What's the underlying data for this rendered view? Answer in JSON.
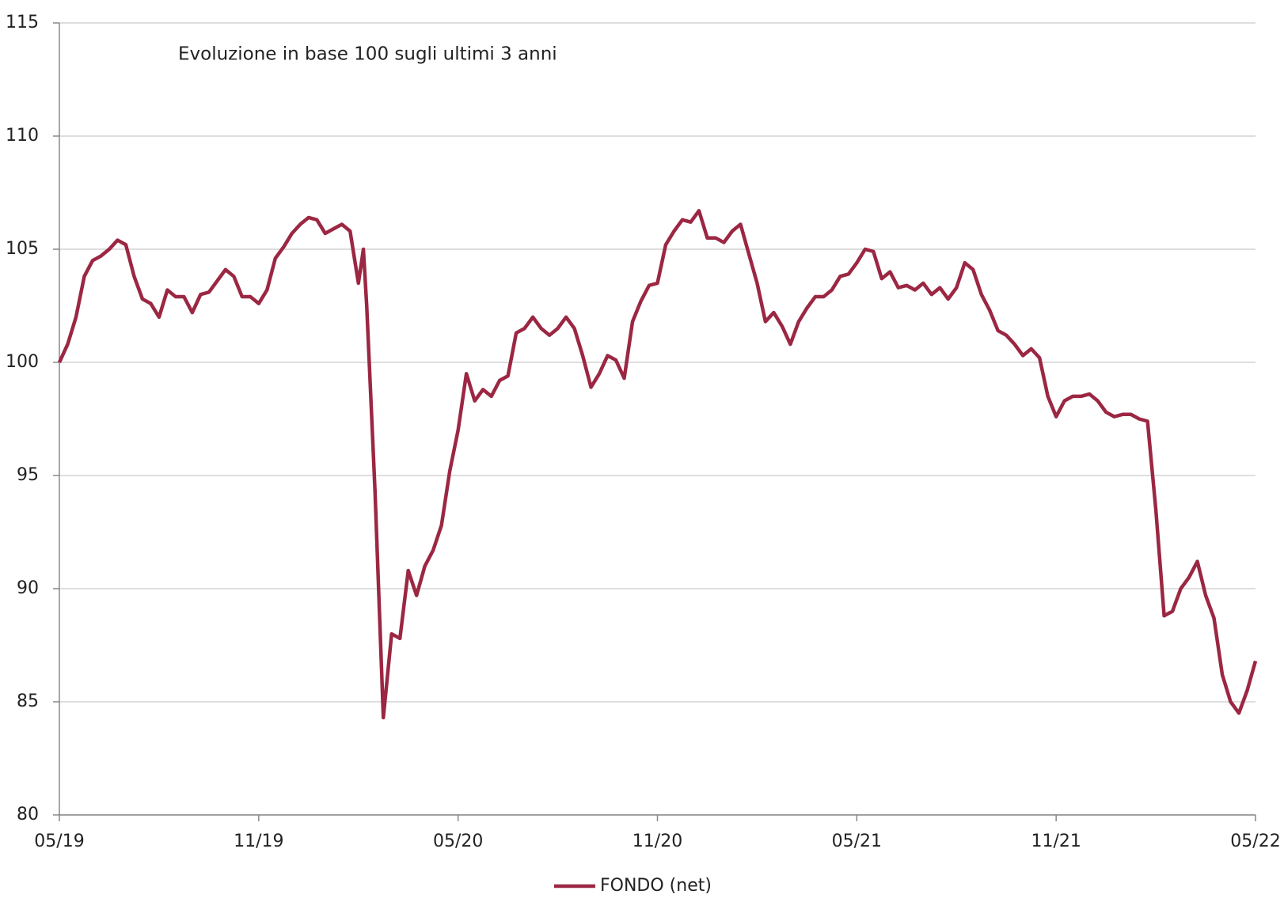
{
  "chart_data": {
    "type": "line",
    "title": "Evoluzione in base 100 sugli ultimi 3 anni",
    "x": [
      0,
      0.25,
      0.5,
      0.75,
      1,
      1.25,
      1.5,
      1.75,
      2,
      2.25,
      2.5,
      2.75,
      3,
      3.25,
      3.5,
      3.75,
      4,
      4.25,
      4.5,
      4.75,
      5,
      5.25,
      5.5,
      5.75,
      6,
      6.25,
      6.5,
      6.75,
      7,
      7.25,
      7.5,
      7.75,
      8,
      8.25,
      8.5,
      8.75,
      9,
      9.15,
      9.25,
      9.5,
      9.75,
      10,
      10.25,
      10.5,
      10.75,
      11,
      11.25,
      11.5,
      11.75,
      12,
      12.25,
      12.5,
      12.75,
      13,
      13.25,
      13.5,
      13.75,
      14,
      14.25,
      14.5,
      14.75,
      15,
      15.25,
      15.5,
      15.75,
      16,
      16.25,
      16.5,
      16.75,
      17,
      17.25,
      17.5,
      17.75,
      18,
      18.25,
      18.5,
      18.75,
      19,
      19.25,
      19.5,
      19.75,
      20,
      20.25,
      20.5,
      20.75,
      21,
      21.25,
      21.5,
      21.75,
      22,
      22.25,
      22.5,
      22.75,
      23,
      23.25,
      23.5,
      23.75,
      24,
      24.25,
      24.5,
      24.75,
      25,
      25.25,
      25.5,
      25.75,
      26,
      26.25,
      26.5,
      26.75,
      27,
      27.25,
      27.5,
      27.75,
      28,
      28.25,
      28.5,
      28.75,
      29,
      29.25,
      29.5,
      29.75,
      30,
      30.25,
      30.5,
      30.75,
      31,
      31.25,
      31.5,
      31.75,
      32,
      32.25,
      32.5,
      32.75,
      33,
      33.25,
      33.5,
      33.75,
      34,
      34.25,
      34.5,
      34.75,
      35,
      35.25,
      35.5,
      35.75,
      36
    ],
    "series": [
      {
        "name": "FONDO (net)",
        "color": "#9b2743",
        "values": [
          100,
          100.8,
          102,
          103.8,
          104.5,
          104.7,
          105,
          105.4,
          105.2,
          103.8,
          102.8,
          102.6,
          102,
          103.2,
          102.9,
          102.9,
          102.2,
          103,
          103.1,
          103.6,
          104.1,
          103.8,
          102.9,
          102.9,
          102.6,
          103.2,
          104.6,
          105.1,
          105.7,
          106.1,
          106.4,
          106.3,
          105.7,
          105.9,
          106.1,
          105.8,
          103.5,
          105,
          102.5,
          94.3,
          84.3,
          88,
          87.8,
          90.8,
          89.7,
          91,
          91.7,
          92.8,
          95.2,
          97,
          99.5,
          98.3,
          98.8,
          98.5,
          99.2,
          99.4,
          101.3,
          101.5,
          102,
          101.5,
          101.2,
          101.5,
          102,
          101.5,
          100.3,
          98.9,
          99.5,
          100.3,
          100.1,
          99.3,
          101.8,
          102.7,
          103.4,
          103.5,
          105.2,
          105.8,
          106.3,
          106.2,
          106.7,
          105.5,
          105.5,
          105.3,
          105.8,
          106.1,
          104.8,
          103.5,
          101.8,
          102.2,
          101.6,
          100.8,
          101.8,
          102.4,
          102.9,
          102.9,
          103.2,
          103.8,
          103.9,
          104.4,
          105,
          104.9,
          103.7,
          104,
          103.3,
          103.4,
          103.2,
          103.5,
          103,
          103.3,
          102.8,
          103.3,
          104.4,
          104.1,
          103,
          102.3,
          101.4,
          101.2,
          100.8,
          100.3,
          100.6,
          100.2,
          98.5,
          97.6,
          98.3,
          98.5,
          98.5,
          98.6,
          98.3,
          97.8,
          97.6,
          97.7,
          97.7,
          97.5,
          97.4,
          93.5,
          88.8,
          89,
          90,
          90.5,
          91.2,
          89.7,
          88.7,
          86.2,
          85,
          84.5,
          85.5,
          86.8
        ]
      }
    ],
    "xlim": [
      0,
      36
    ],
    "xticks": [
      {
        "value": 0,
        "label": "05/19"
      },
      {
        "value": 6,
        "label": "11/19"
      },
      {
        "value": 12,
        "label": "05/20"
      },
      {
        "value": 18,
        "label": "11/20"
      },
      {
        "value": 24,
        "label": "05/21"
      },
      {
        "value": 30,
        "label": "11/21"
      },
      {
        "value": 36,
        "label": "05/22"
      }
    ],
    "ylim": [
      80,
      115
    ],
    "yticks": [
      80,
      85,
      90,
      95,
      100,
      105,
      110,
      115
    ],
    "grid": true
  }
}
